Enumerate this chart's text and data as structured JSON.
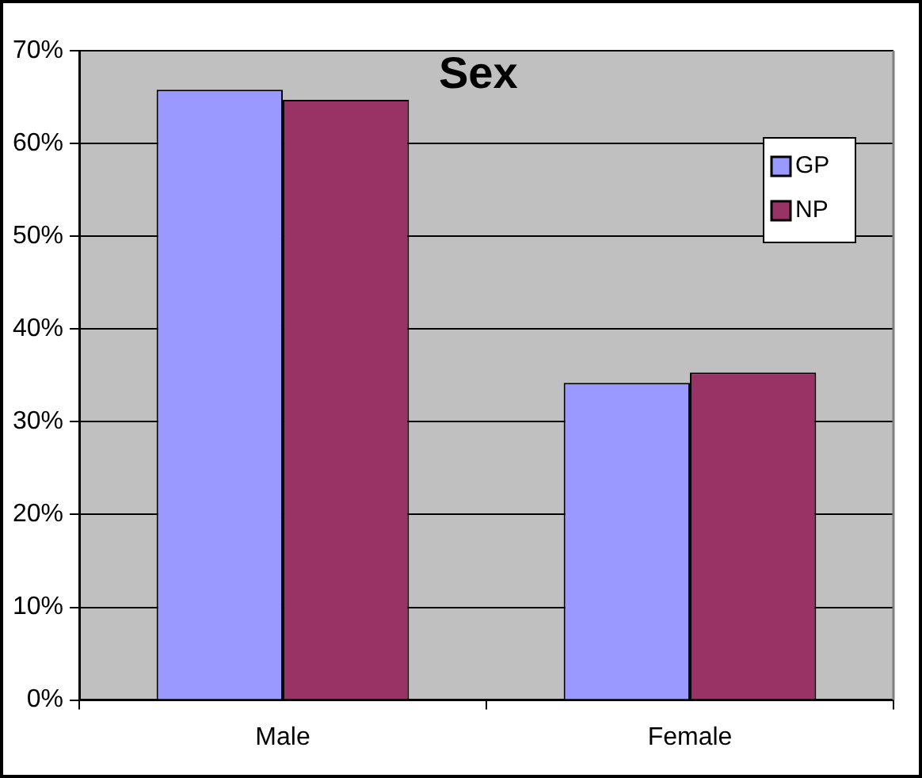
{
  "chart_data": {
    "type": "bar",
    "title": "Sex",
    "categories": [
      "Male",
      "Female"
    ],
    "series": [
      {
        "name": "GP",
        "color": "#9999ff",
        "values": [
          65.8,
          34.2
        ]
      },
      {
        "name": "NP",
        "color": "#993366",
        "values": [
          64.7,
          35.3
        ]
      }
    ],
    "ylim": [
      0,
      70
    ],
    "yticks": [
      {
        "value": 0,
        "label": "0%"
      },
      {
        "value": 10,
        "label": "10%"
      },
      {
        "value": 20,
        "label": "20%"
      },
      {
        "value": 30,
        "label": "30%"
      },
      {
        "value": 40,
        "label": "40%"
      },
      {
        "value": 50,
        "label": "50%"
      },
      {
        "value": 60,
        "label": "60%"
      },
      {
        "value": 70,
        "label": "70%"
      }
    ],
    "grid": "y",
    "legend": "top right"
  }
}
